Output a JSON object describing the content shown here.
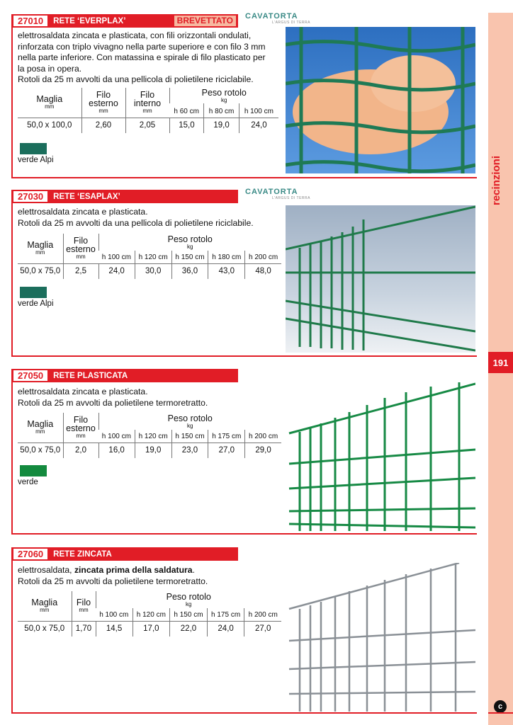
{
  "sidebar": {
    "title": "recinzioni",
    "page_number": "191",
    "footer_icon": "c-logo-icon",
    "color": "#f9c4ae",
    "accent": "#e11d26"
  },
  "products": [
    {
      "code": "27010",
      "name": "RETE ‘EVERPLAX’",
      "badge": "BREVETTATO",
      "brand": "CAVATORTA",
      "brand_tagline": "L'ARGUS DI TERRA",
      "description": [
        "elettrosaldata zincata e plasticata, con fili orizzontali ondulati,",
        "rinforzata con triplo vivagno nella parte superiore e con filo 3 mm",
        "nella parte inferiore. Con matassina e spirale di filo plasticato per",
        "la posa in opera.",
        "Rotoli da 25 m avvolti da una pellicola di polietilene riciclabile."
      ],
      "columns": [
        {
          "label": "Maglia",
          "unit": "mm"
        },
        {
          "label": "Filo esterno",
          "unit": "mm"
        },
        {
          "label": "Filo interno",
          "unit": "mm"
        }
      ],
      "weight_header": {
        "label": "Peso rotolo",
        "unit": "kg"
      },
      "heights": [
        "h 60 cm",
        "h 80 cm",
        "h 100 cm"
      ],
      "row": [
        "50,0 x 100,0",
        "2,60",
        "2,05",
        "15,0",
        "19,0",
        "24,0"
      ],
      "color_name": "verde Alpi",
      "swatch": "#1b6e5c"
    },
    {
      "code": "27030",
      "name": "RETE ‘ESAPLAX’",
      "brand": "CAVATORTA",
      "brand_tagline": "L'ARGUS DI TERRA",
      "description": [
        "elettrosaldata zincata e plasticata.",
        "Rotoli da 25 m avvolti da una pellicola di polietilene riciclabile."
      ],
      "columns": [
        {
          "label": "Maglia",
          "unit": "mm"
        },
        {
          "label": "Filo esterno",
          "unit": "mm"
        }
      ],
      "weight_header": {
        "label": "Peso rotolo",
        "unit": "kg"
      },
      "heights": [
        "h 100 cm",
        "h 120 cm",
        "h 150 cm",
        "h 180 cm",
        "h 200 cm"
      ],
      "row": [
        "50,0 x 75,0",
        "2,5",
        "24,0",
        "30,0",
        "36,0",
        "43,0",
        "48,0"
      ],
      "color_name": "verde Alpi",
      "swatch": "#1b6e5c"
    },
    {
      "code": "27050",
      "name": "RETE PLASTICATA",
      "description": [
        "elettrosaldata zincata e plasticata.",
        "Rotoli da 25 m avvolti da polietilene termoretratto."
      ],
      "columns": [
        {
          "label": "Maglia",
          "unit": "mm"
        },
        {
          "label": "Filo esterno",
          "unit": "mm"
        }
      ],
      "weight_header": {
        "label": "Peso rotolo",
        "unit": "kg"
      },
      "heights": [
        "h 100 cm",
        "h 120 cm",
        "h 150 cm",
        "h 175 cm",
        "h 200 cm"
      ],
      "row": [
        "50,0 x 75,0",
        "2,0",
        "16,0",
        "19,0",
        "23,0",
        "27,0",
        "29,0"
      ],
      "color_name": "verde",
      "swatch": "#138a3e"
    },
    {
      "code": "27060",
      "name": "RETE ZINCATA",
      "description_parts": [
        "elettrosaldata, ",
        "zincata prima della saldatura",
        "."
      ],
      "description": [
        "Rotoli da 25 m avvolti da polietilene termoretratto."
      ],
      "columns": [
        {
          "label": "Maglia",
          "unit": "mm"
        },
        {
          "label": "Filo",
          "unit": "mm"
        }
      ],
      "weight_header": {
        "label": "Peso rotolo",
        "unit": "kg"
      },
      "heights": [
        "h 100 cm",
        "h 120 cm",
        "h 150 cm",
        "h 175 cm",
        "h 200 cm"
      ],
      "row": [
        "50,0 x 75,0",
        "1,70",
        "14,5",
        "17,0",
        "22,0",
        "24,0",
        "27,0"
      ]
    }
  ]
}
